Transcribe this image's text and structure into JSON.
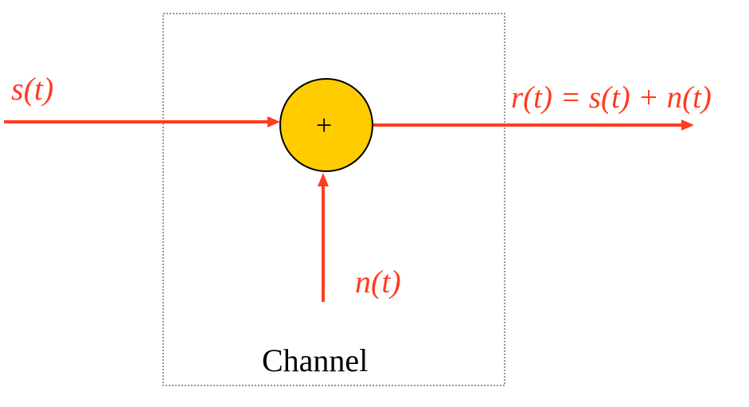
{
  "diagram": {
    "input_signal": "s(t)",
    "output_signal": "r(t) = s(t) + n(t)",
    "noise_signal": "n(t)",
    "summing_symbol": "+",
    "block_label": "Channel"
  },
  "colors": {
    "signal": "#ff3c1f",
    "summing_fill": "#ffcc00",
    "box_border": "#555555",
    "text": "#000000"
  }
}
